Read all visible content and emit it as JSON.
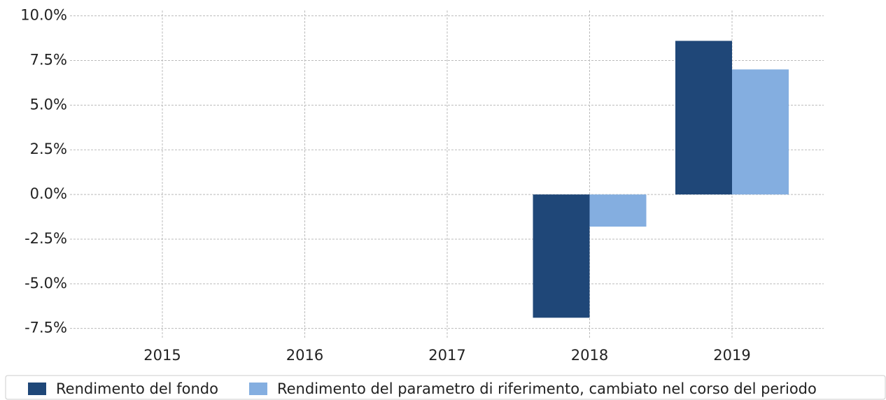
{
  "chart_data": {
    "type": "bar",
    "categories": [
      "2015",
      "2016",
      "2017",
      "2018",
      "2019"
    ],
    "series": [
      {
        "name": "Rendimento del fondo",
        "color": "#1f4778",
        "values": [
          null,
          null,
          null,
          -6.9,
          8.6
        ]
      },
      {
        "name": "Rendimento del parametro di riferimento, cambiato nel corso del periodo",
        "color": "#84aee0",
        "values": [
          null,
          null,
          null,
          -1.8,
          7.0
        ]
      }
    ],
    "ylim": [
      -8.1,
      10.3
    ],
    "yticks": [
      {
        "value": -7.5,
        "label": "-7.5%"
      },
      {
        "value": -5,
        "label": "-5.0%"
      },
      {
        "value": -2.5,
        "label": "-2.5%"
      },
      {
        "value": 0,
        "label": "0.0%"
      },
      {
        "value": 2.5,
        "label": "2.5%"
      },
      {
        "value": 5,
        "label": "5.0%"
      },
      {
        "value": 7.5,
        "label": "7.5%"
      },
      {
        "value": 10,
        "label": "10.0%"
      }
    ],
    "grid": true,
    "legend": "bottom"
  }
}
